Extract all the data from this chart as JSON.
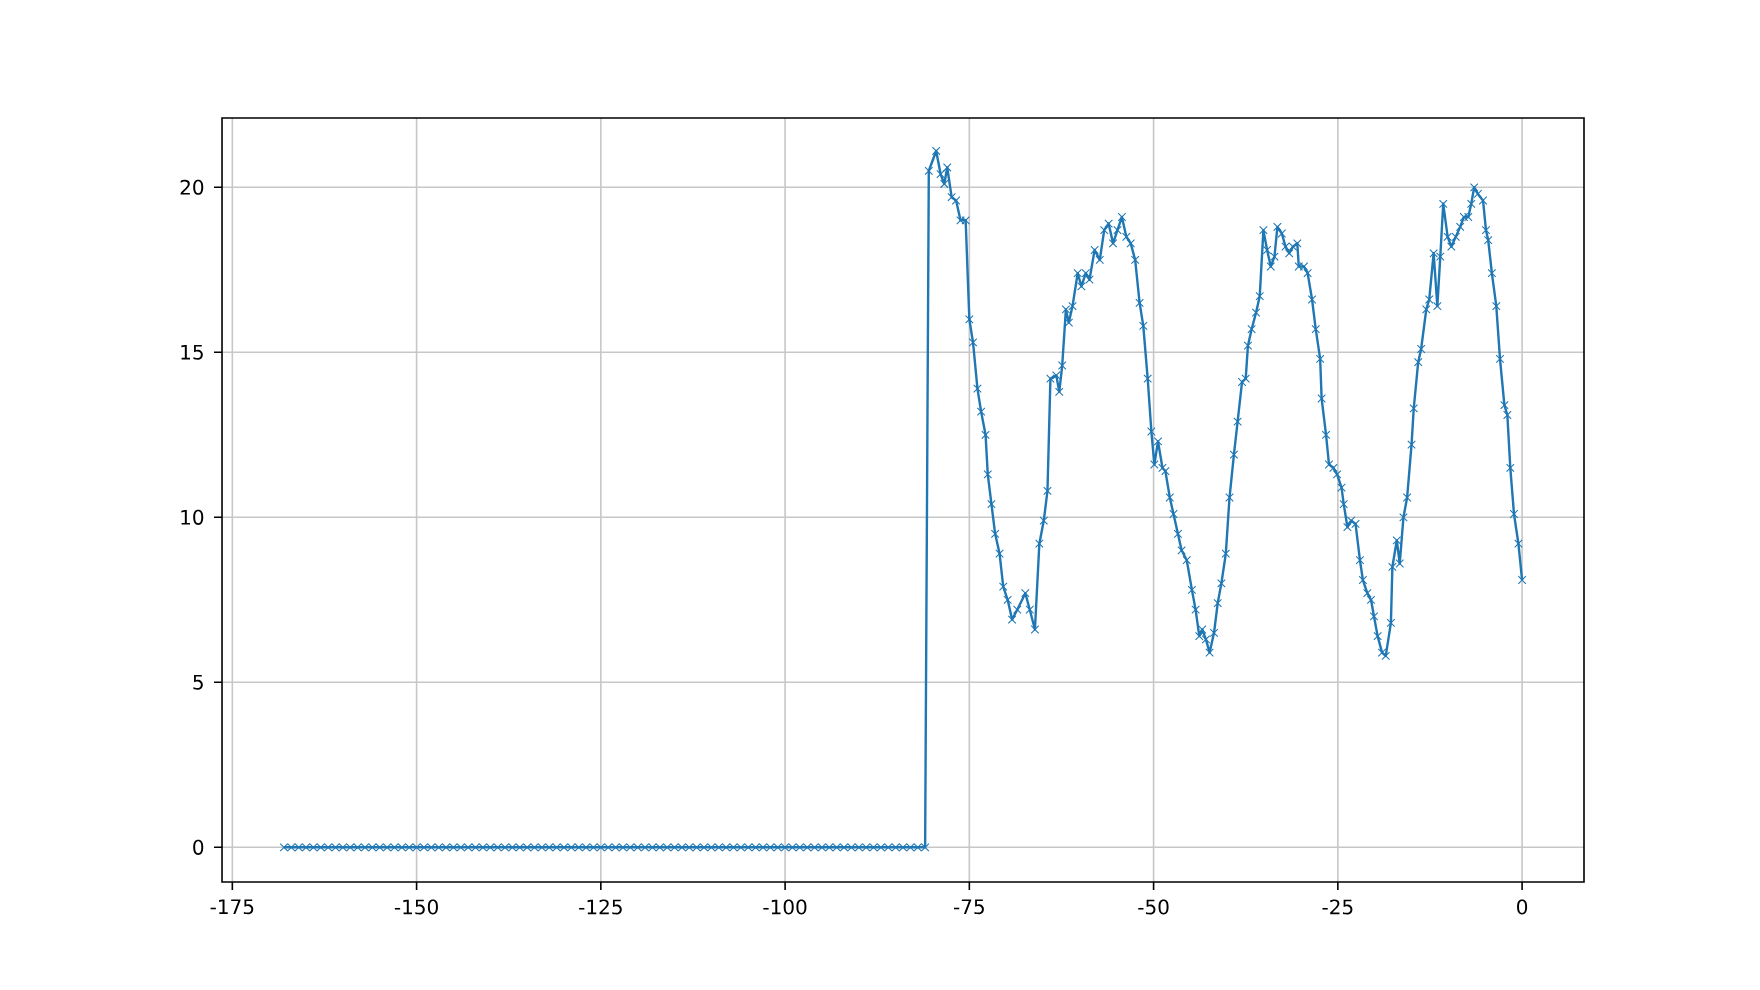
{
  "chart_data": {
    "type": "line",
    "color": "#1f77b4",
    "marker": "cross",
    "line_style": "solid",
    "grid": true,
    "xlim": [
      -176.4,
      8.4
    ],
    "ylim": [
      -1.05,
      22.1
    ],
    "xticks": [
      -175,
      -150,
      -125,
      -100,
      -75,
      -50,
      -25,
      0
    ],
    "yticks": [
      0,
      5,
      10,
      15,
      20
    ],
    "x": [
      -168,
      -167,
      -166,
      -165,
      -164,
      -163,
      -162,
      -161,
      -160,
      -159,
      -158,
      -157,
      -156,
      -155,
      -154,
      -153,
      -152,
      -151,
      -150,
      -149,
      -148,
      -147,
      -146,
      -145,
      -144,
      -143,
      -142,
      -141,
      -140,
      -139,
      -138,
      -137,
      -136,
      -135,
      -134,
      -133,
      -132,
      -131,
      -130,
      -129,
      -128,
      -127,
      -126,
      -125,
      -124,
      -123,
      -122,
      -121,
      -120,
      -119,
      -118,
      -117,
      -116,
      -115,
      -114,
      -113,
      -112,
      -111,
      -110,
      -109,
      -108,
      -107,
      -106,
      -105,
      -104,
      -103,
      -102,
      -101,
      -100,
      -99,
      -98,
      -97,
      -96,
      -95,
      -94,
      -93,
      -92,
      -91,
      -90,
      -89,
      -88,
      -87,
      -86,
      -85,
      -84,
      -83,
      -82,
      -81,
      -80.5,
      -79.5,
      -78.9,
      -78.4,
      -78,
      -77.4,
      -76.8,
      -76.2,
      -75.5,
      -75,
      -74.5,
      -73.9,
      -73.4,
      -72.8,
      -72.5,
      -72,
      -71.5,
      -70.9,
      -70.4,
      -69.8,
      -69.2,
      -68.5,
      -67.4,
      -66.8,
      -66.1,
      -65.5,
      -64.9,
      -64.4,
      -64,
      -63.2,
      -62.8,
      -62.4,
      -61.9,
      -61.5,
      -61,
      -60.3,
      -59.8,
      -59.2,
      -58.7,
      -58,
      -57.3,
      -56.7,
      -56.1,
      -55.5,
      -54.9,
      -54.3,
      -53.7,
      -53.1,
      -52.5,
      -51.9,
      -51.4,
      -50.8,
      -50.3,
      -49.9,
      -49.4,
      -48.8,
      -48.4,
      -47.8,
      -47.3,
      -46.7,
      -46.2,
      -45.5,
      -44.8,
      -44.3,
      -43.8,
      -43.4,
      -42.9,
      -42.4,
      -41.8,
      -41.3,
      -40.8,
      -40.2,
      -39.7,
      -39.1,
      -38.6,
      -38,
      -37.5,
      -37.2,
      -36.7,
      -36.1,
      -35.6,
      -35.1,
      -34.6,
      -34.1,
      -33.6,
      -33.2,
      -32.6,
      -32.1,
      -31.6,
      -31.1,
      -30.5,
      -30.3,
      -29.6,
      -29.1,
      -28.5,
      -28,
      -27.4,
      -27.2,
      -26.6,
      -26.2,
      -25.6,
      -25.1,
      -24.5,
      -24.2,
      -23.7,
      -23.2,
      -22.6,
      -22,
      -21.6,
      -21,
      -20.5,
      -20.1,
      -19.6,
      -19,
      -18.5,
      -17.8,
      -17.6,
      -17,
      -16.6,
      -16.1,
      -15.6,
      -15,
      -14.7,
      -14.1,
      -13.7,
      -13,
      -12.6,
      -12,
      -11.5,
      -11.1,
      -10.7,
      -10.1,
      -9.6,
      -9,
      -8.4,
      -7.9,
      -7.3,
      -6.9,
      -6.5,
      -6,
      -5.3,
      -4.9,
      -4.6,
      -4.1,
      -3.5,
      -3,
      -2.4,
      -2,
      -1.6,
      -1.1,
      -0.5,
      0
    ],
    "values": [
      0,
      0,
      0,
      0,
      0,
      0,
      0,
      0,
      0,
      0,
      0,
      0,
      0,
      0,
      0,
      0,
      0,
      0,
      0,
      0,
      0,
      0,
      0,
      0,
      0,
      0,
      0,
      0,
      0,
      0,
      0,
      0,
      0,
      0,
      0,
      0,
      0,
      0,
      0,
      0,
      0,
      0,
      0,
      0,
      0,
      0,
      0,
      0,
      0,
      0,
      0,
      0,
      0,
      0,
      0,
      0,
      0,
      0,
      0,
      0,
      0,
      0,
      0,
      0,
      0,
      0,
      0,
      0,
      0,
      0,
      0,
      0,
      0,
      0,
      0,
      0,
      0,
      0,
      0,
      0,
      0,
      0,
      0,
      0,
      0,
      0,
      0,
      0,
      20.5,
      21.1,
      20.4,
      20.1,
      20.6,
      19.7,
      19.6,
      19.0,
      19.0,
      16.0,
      15.3,
      13.9,
      13.2,
      12.5,
      11.3,
      10.4,
      9.5,
      8.9,
      7.9,
      7.5,
      6.9,
      7.2,
      7.7,
      7.2,
      6.6,
      9.2,
      9.9,
      10.8,
      14.2,
      14.3,
      13.8,
      14.6,
      16.3,
      15.9,
      16.4,
      17.4,
      17.0,
      17.4,
      17.2,
      18.1,
      17.8,
      18.7,
      18.9,
      18.3,
      18.7,
      19.1,
      18.5,
      18.3,
      17.8,
      16.5,
      15.8,
      14.2,
      12.6,
      11.6,
      12.3,
      11.5,
      11.4,
      10.6,
      10.1,
      9.5,
      9.0,
      8.7,
      7.8,
      7.2,
      6.4,
      6.6,
      6.3,
      5.9,
      6.5,
      7.4,
      8.0,
      8.9,
      10.6,
      11.9,
      12.9,
      14.1,
      14.2,
      15.2,
      15.7,
      16.2,
      16.7,
      18.7,
      18.1,
      17.6,
      17.9,
      18.8,
      18.6,
      18.2,
      18.0,
      18.2,
      18.3,
      17.6,
      17.6,
      17.4,
      16.6,
      15.7,
      14.8,
      13.6,
      12.5,
      11.6,
      11.5,
      11.3,
      10.9,
      10.4,
      9.7,
      9.9,
      9.8,
      8.7,
      8.1,
      7.7,
      7.5,
      7.0,
      6.4,
      5.9,
      5.8,
      6.8,
      8.5,
      9.3,
      8.6,
      10.0,
      10.6,
      12.2,
      13.3,
      14.7,
      15.1,
      16.3,
      16.6,
      18.0,
      16.4,
      17.9,
      19.5,
      18.5,
      18.2,
      18.5,
      18.8,
      19.1,
      19.1,
      19.5,
      20.0,
      19.8,
      19.6,
      18.7,
      18.4,
      17.4,
      16.4,
      14.8,
      13.4,
      13.1,
      11.5,
      10.1,
      9.2,
      8.1
    ]
  }
}
